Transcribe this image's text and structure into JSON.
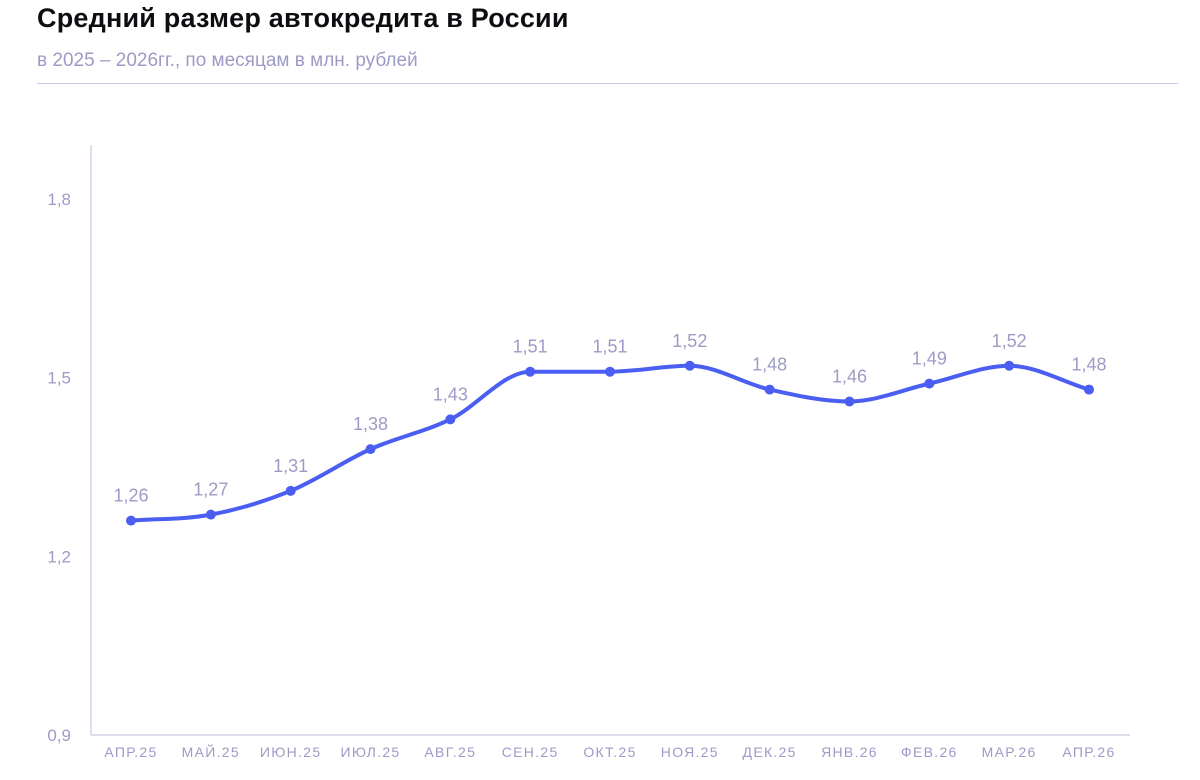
{
  "header": {
    "title": "Средний размер автокредита в России",
    "subtitle": "в 2025 – 2026гг., по месяцам в млн. рублей"
  },
  "colors": {
    "line": "#4a5ff2",
    "axis": "#c9c8e2",
    "text_muted": "#9d9bc6",
    "title": "#0e0e12"
  },
  "chart_data": {
    "type": "line",
    "title": "Средний размер автокредита в России",
    "subtitle": "в 2025 – 2026гг., по месяцам в млн. рублей",
    "xlabel": "",
    "ylabel": "",
    "categories": [
      "АПР.25",
      "МАЙ.25",
      "ИЮН.25",
      "ИЮЛ.25",
      "АВГ.25",
      "СЕН.25",
      "ОКТ.25",
      "НОЯ.25",
      "ДЕК.25",
      "ЯНВ.26",
      "ФЕВ.26",
      "МАР.26",
      "АПР.26"
    ],
    "series": [
      {
        "values": [
          1.26,
          1.27,
          1.31,
          1.38,
          1.43,
          1.51,
          1.51,
          1.52,
          1.48,
          1.46,
          1.49,
          1.52,
          1.48
        ],
        "labels": [
          "1,26",
          "1,27",
          "1,31",
          "1,38",
          "1,43",
          "1,51",
          "1,51",
          "1,52",
          "1,48",
          "1,46",
          "1,49",
          "1,52",
          "1,48"
        ]
      }
    ],
    "y_ticks": [
      0.9,
      1.2,
      1.5,
      1.8
    ],
    "y_tick_labels": [
      "0,9",
      "1,2",
      "1,5",
      "1,8"
    ],
    "ylim": [
      0.9,
      1.9
    ],
    "grid": false,
    "legend": "none",
    "markers": true,
    "smooth": true
  }
}
